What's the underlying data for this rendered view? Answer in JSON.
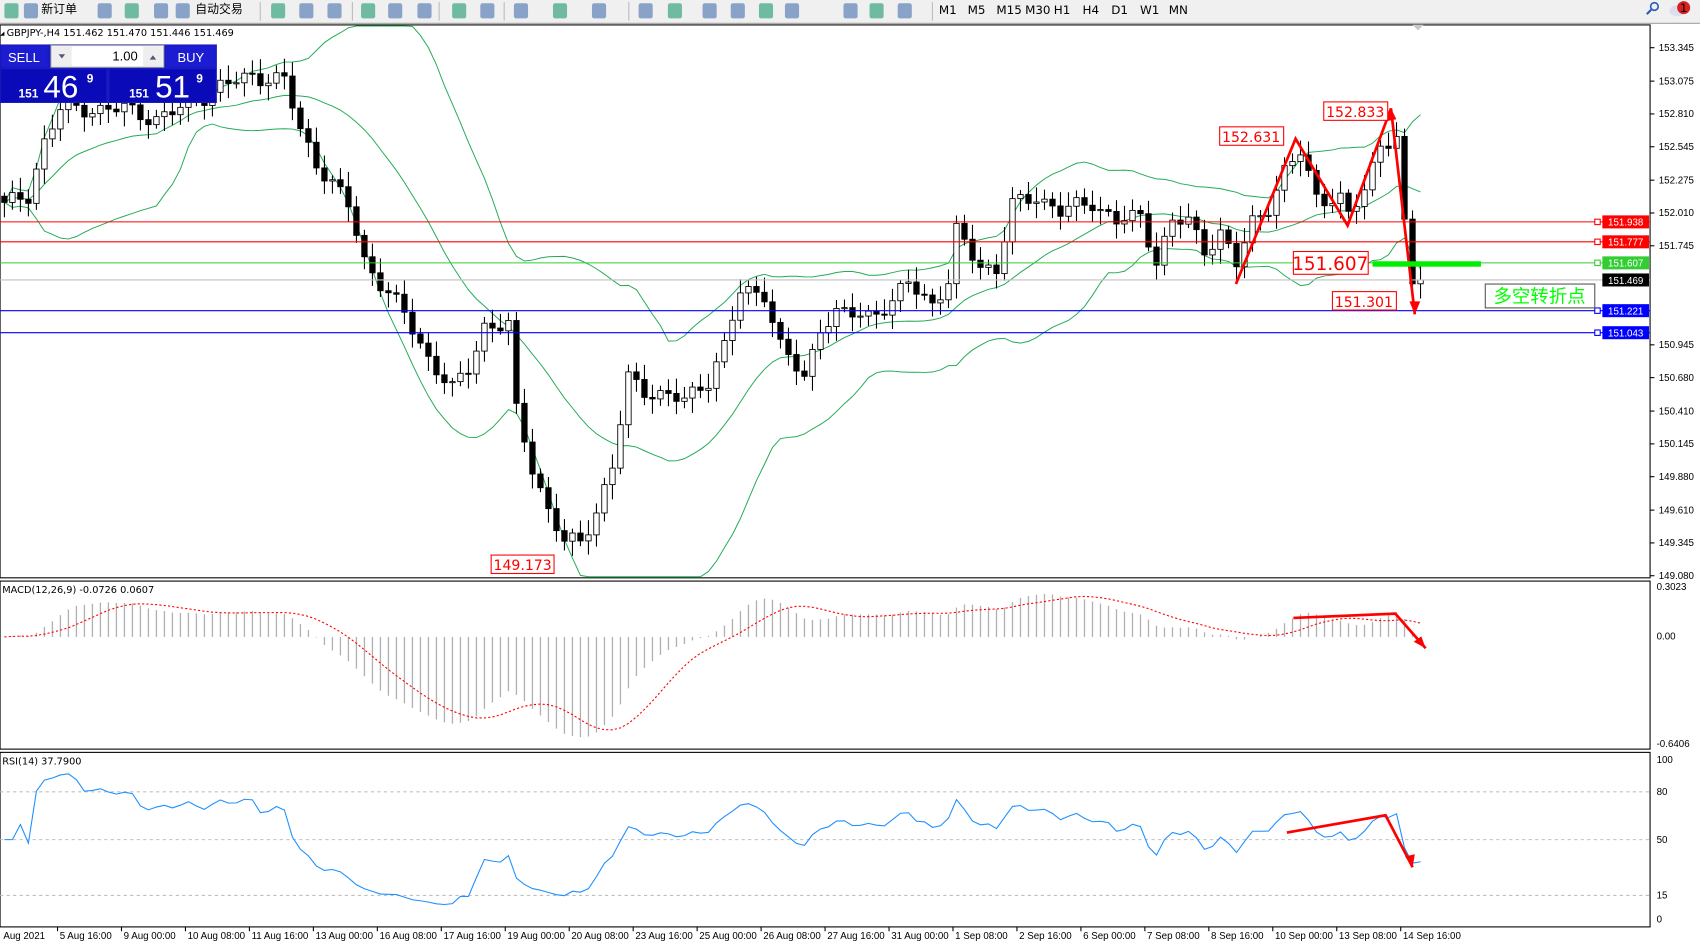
{
  "toolbar": {
    "new_order": "新订单",
    "auto_trading": "自动交易",
    "timeframes": [
      "M1",
      "M5",
      "M15",
      "M30",
      "H1",
      "H4",
      "D1",
      "W1",
      "MN"
    ],
    "notification_count": "1",
    "icons": [
      "new-order-icon",
      "history-icon",
      "market-watch-icon",
      "signal-icon",
      "auto-trading-icon",
      "bar-chart-icon",
      "candlestick-icon",
      "line-chart-icon",
      "zoom-in-icon",
      "zoom-out-icon",
      "tile-windows-icon",
      "auto-scroll-icon",
      "chart-shift-icon",
      "indicators-icon",
      "periods-icon",
      "templates-icon",
      "cursor-icon",
      "crosshair-icon",
      "vertical-line-icon",
      "horizontal-line-icon",
      "trendline-icon",
      "channel-icon",
      "fibonacci-icon",
      "text-icon",
      "text-label-icon",
      "arrows-icon",
      "search-icon",
      "chat-icon"
    ]
  },
  "symbol_info": "GBPJPY-,H4  151.462 151.470 151.446 151.469",
  "trade_panel": {
    "sell_label": "SELL",
    "buy_label": "BUY",
    "lots": "1.00",
    "bid_prefix": "151",
    "bid_main": "46",
    "bid_sup": "9",
    "ask_prefix": "151",
    "ask_main": "51",
    "ask_sup": "9"
  },
  "price_axis": {
    "ticks": [
      "153.345",
      "153.075",
      "152.810",
      "152.545",
      "152.275",
      "152.010",
      "151.745",
      "150.945",
      "150.680",
      "150.410",
      "150.145",
      "149.880",
      "149.610",
      "149.345",
      "149.080"
    ]
  },
  "hlines": [
    {
      "price": 151.938,
      "label": "151.938",
      "color": "#ff0000"
    },
    {
      "price": 151.777,
      "label": "151.777",
      "color": "#ff0000"
    },
    {
      "price": 151.607,
      "label": "151.607",
      "color": "#32cd32"
    },
    {
      "price": 151.469,
      "label": "151.469",
      "color": "#000000"
    },
    {
      "price": 151.221,
      "label": "151.221",
      "color": "#0000ff"
    },
    {
      "price": 151.043,
      "label": "151.043",
      "color": "#0000ff"
    }
  ],
  "annotations": [
    {
      "text": "152.631"
    },
    {
      "text": "152.833"
    },
    {
      "text": "151.607"
    },
    {
      "text": "151.301"
    },
    {
      "text": "149.173"
    }
  ],
  "note_text": "多空转折点",
  "macd": {
    "label": "MACD(12,26,9) -0.0726 0.0607",
    "ticks": [
      "0.3023",
      "0.00",
      "-0.6406"
    ]
  },
  "rsi": {
    "label": "RSI(14) 37.7900",
    "ticks": [
      "100",
      "80",
      "50",
      "15",
      "0"
    ]
  },
  "dates": [
    "Aug 2021",
    "5 Aug 16:00",
    "9 Aug 00:00",
    "10 Aug 08:00",
    "11 Aug 16:00",
    "13 Aug 00:00",
    "16 Aug 08:00",
    "17 Aug 16:00",
    "19 Aug 00:00",
    "20 Aug 08:00",
    "23 Aug 16:00",
    "25 Aug 00:00",
    "26 Aug 08:00",
    "27 Aug 16:00",
    "31 Aug 00:00",
    "1 Sep 08:00",
    "2 Sep 16:00",
    "6 Sep 00:00",
    "7 Sep 08:00",
    "8 Sep 16:00",
    "10 Sep 00:00",
    "13 Sep 08:00",
    "14 Sep 16:00"
  ],
  "chart_data": {
    "type": "candlestick",
    "symbol": "GBPJPY",
    "timeframe": "H4",
    "indicators": [
      "Bollinger Bands",
      "MACD(12,26,9)",
      "RSI(14)"
    ],
    "price_range": [
      149.08,
      153.345
    ],
    "close_path": [
      [
        0,
        152.07
      ],
      [
        3,
        152.15
      ],
      [
        5,
        152.59
      ],
      [
        7,
        152.85
      ],
      [
        11,
        152.85
      ],
      [
        15,
        152.85
      ],
      [
        19,
        152.77
      ],
      [
        22,
        152.85
      ],
      [
        27,
        153.03
      ],
      [
        31,
        153.12
      ],
      [
        35,
        153.08
      ],
      [
        37,
        152.68
      ],
      [
        39,
        152.42
      ],
      [
        43,
        152.07
      ],
      [
        45,
        151.63
      ],
      [
        47,
        151.45
      ],
      [
        50,
        151.19
      ],
      [
        53,
        150.84
      ],
      [
        56,
        150.58
      ],
      [
        58,
        150.75
      ],
      [
        60,
        151.1
      ],
      [
        63,
        151.1
      ],
      [
        64,
        150.4
      ],
      [
        66,
        149.96
      ],
      [
        68,
        149.61
      ],
      [
        70,
        149.35
      ],
      [
        72,
        149.35
      ],
      [
        74,
        149.61
      ],
      [
        76,
        149.96
      ],
      [
        78,
        150.67
      ],
      [
        80,
        150.58
      ],
      [
        83,
        150.53
      ],
      [
        85,
        150.49
      ],
      [
        88,
        150.67
      ],
      [
        90,
        150.93
      ],
      [
        92,
        151.37
      ],
      [
        95,
        151.37
      ],
      [
        97,
        150.93
      ],
      [
        100,
        150.67
      ],
      [
        102,
        151.1
      ],
      [
        104,
        151.19
      ],
      [
        108,
        151.19
      ],
      [
        111,
        151.28
      ],
      [
        113,
        151.45
      ],
      [
        116,
        151.28
      ],
      [
        118,
        151.45
      ],
      [
        119,
        151.85
      ],
      [
        122,
        151.59
      ],
      [
        124,
        151.55
      ],
      [
        126,
        152.07
      ],
      [
        129,
        152.15
      ],
      [
        132,
        152.02
      ],
      [
        136,
        152.1
      ],
      [
        139,
        151.94
      ],
      [
        142,
        151.98
      ],
      [
        144,
        151.63
      ],
      [
        146,
        151.94
      ],
      [
        148,
        151.94
      ],
      [
        150,
        151.72
      ],
      [
        152,
        151.85
      ],
      [
        154,
        151.59
      ],
      [
        156,
        151.94
      ],
      [
        158,
        152.07
      ],
      [
        160,
        152.33
      ],
      [
        162,
        152.5
      ],
      [
        164,
        152.15
      ],
      [
        167,
        152.11
      ],
      [
        168,
        151.98
      ],
      [
        170,
        152.2
      ],
      [
        172,
        152.59
      ],
      [
        174,
        152.59
      ],
      [
        175,
        151.89
      ],
      [
        176,
        151.45
      ],
      [
        177,
        151.469
      ]
    ],
    "colors": {
      "band": "#22aa55",
      "signal": "#ff0000",
      "rsi": "#1e90ff",
      "histogram": "#b0b0b0",
      "arrows": "#ff0000",
      "note": "#00ff00"
    }
  }
}
